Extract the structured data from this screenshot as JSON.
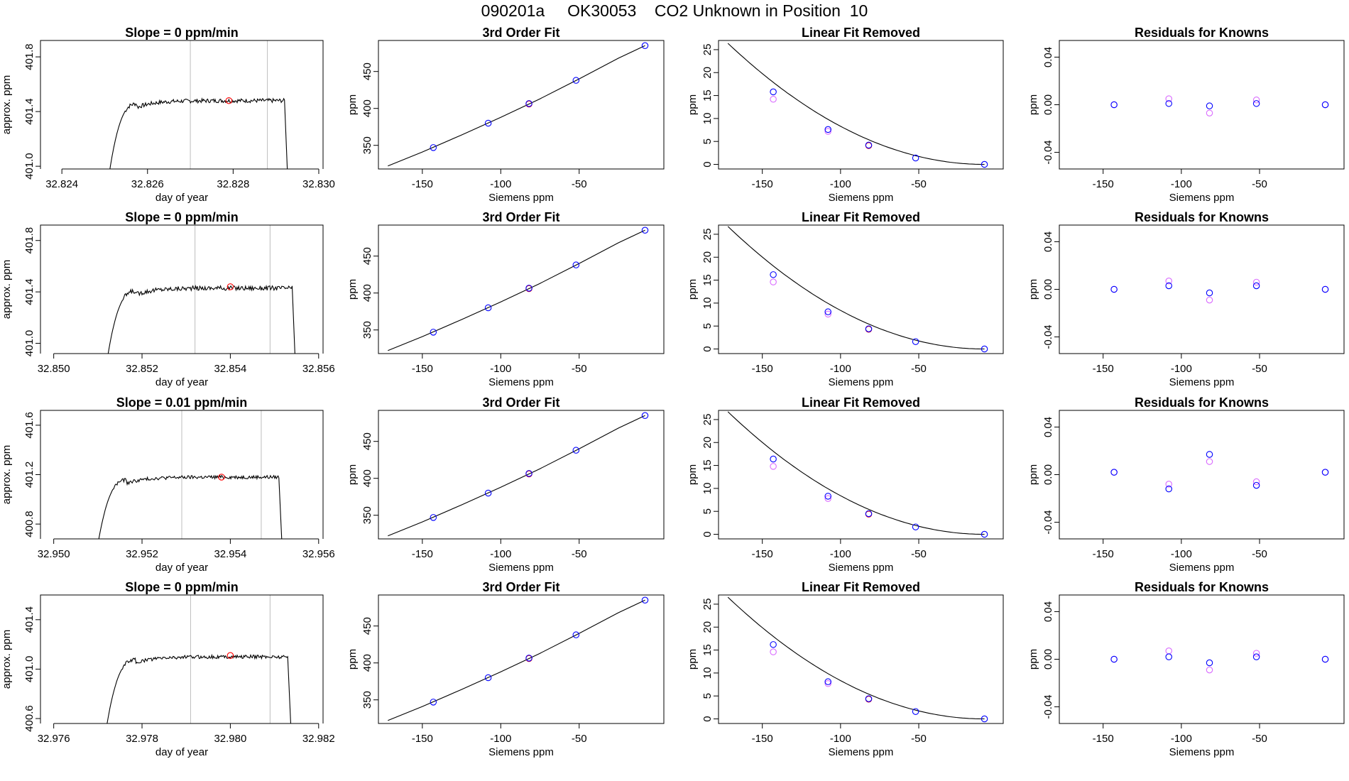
{
  "figure_title": "090201a     OK30053    CO2 Unknown in Position  10",
  "colors": {
    "line": "#000000",
    "vline": "#bdbdbd",
    "unknown_point": "#ff0000",
    "known_point": "#0000ff",
    "magenta_point": "#d96bff"
  },
  "chart_data": [
    {
      "type": "line",
      "row": 1,
      "panel": "trace",
      "title": "Slope =  0  ppm/min",
      "xlabel": "day of year",
      "ylabel": "approx. ppm",
      "xlim": [
        32.8235,
        32.8301
      ],
      "ylim": [
        400.98,
        401.92
      ],
      "xticks": [
        32.824,
        32.826,
        32.828,
        32.83
      ],
      "xtick_labels": [
        "32.824",
        "32.826",
        "32.828",
        "32.830"
      ],
      "yticks": [
        401.0,
        401.4,
        401.8
      ],
      "ytick_labels": [
        "401.0",
        "401.4",
        "401.8"
      ],
      "vlines": [
        32.827,
        32.8288
      ],
      "trace": {
        "start": 32.825,
        "end": 32.8292,
        "base": 400.7,
        "level": 401.48,
        "noise": 0.015,
        "tail_end": 32.8293
      },
      "marker": {
        "x": 32.8279,
        "y": 401.48
      }
    },
    {
      "type": "scatter",
      "row": 1,
      "panel": "fit",
      "title": "3rd Order Fit",
      "xlabel": "Siemens ppm",
      "ylabel": "ppm",
      "xlim": [
        -178,
        4
      ],
      "ylim": [
        318,
        492
      ],
      "xticks": [
        -150,
        -100,
        -50
      ],
      "xtick_labels": [
        "-150",
        "-100",
        "-50"
      ],
      "yticks": [
        350,
        400,
        450
      ],
      "ytick_labels": [
        "350",
        "400",
        "450"
      ],
      "knowns": {
        "x": [
          -143,
          -108,
          -52,
          -8
        ],
        "y": [
          347,
          380,
          438,
          485
        ]
      },
      "unknown": {
        "x": [
          -82
        ],
        "y": [
          406
        ]
      },
      "curve": {
        "x": [
          -172,
          -150,
          -125,
          -100,
          -75,
          -50,
          -25,
          -8
        ],
        "y": [
          322,
          341,
          364,
          388,
          413,
          440,
          468,
          485
        ]
      }
    },
    {
      "type": "scatter",
      "row": 1,
      "panel": "linear_removed",
      "title": "Linear Fit Removed",
      "xlabel": "Siemens ppm",
      "ylabel": "ppm",
      "xlim": [
        -178,
        4
      ],
      "ylim": [
        -1,
        27
      ],
      "xticks": [
        -150,
        -100,
        -50
      ],
      "xtick_labels": [
        "-150",
        "-100",
        "-50"
      ],
      "yticks": [
        0,
        5,
        10,
        15,
        20,
        25
      ],
      "ytick_labels": [
        "0",
        "5",
        "10",
        "15",
        "20",
        "25"
      ],
      "knowns": {
        "x": [
          -143,
          -108,
          -52,
          -8
        ],
        "y": [
          15.8,
          7.6,
          1.4,
          0.0
        ]
      },
      "magenta": {
        "x": [
          -143,
          -108
        ],
        "y": [
          14.2,
          7.2
        ]
      },
      "unknown": {
        "x": [
          -82
        ],
        "y": [
          4.1
        ]
      },
      "curve_coeffs": {
        "x0": -8,
        "a": 0.000981
      }
    },
    {
      "type": "scatter",
      "row": 1,
      "panel": "residuals",
      "title": "Residuals for Knowns",
      "xlabel": "Siemens ppm",
      "ylabel": "",
      "xlim": [
        -178,
        4
      ],
      "ylim": [
        -0.054,
        0.054
      ],
      "xticks": [
        -150,
        -100,
        -50
      ],
      "xtick_labels": [
        "-150",
        "-100",
        "-50"
      ],
      "yticks": [
        -0.04,
        0.0,
        0.04
      ],
      "ytick_labels": [
        "-0.04",
        "0.00",
        "0.04"
      ],
      "blue": {
        "x": [
          -143,
          -108,
          -82,
          -52,
          -8
        ],
        "y": [
          0.0,
          0.001,
          -0.001,
          0.001,
          0.0
        ]
      },
      "magenta": {
        "x": [
          -143,
          -108,
          -82,
          -52,
          -8
        ],
        "y": [
          0.0,
          0.005,
          -0.007,
          0.004,
          0.0
        ]
      }
    },
    {
      "type": "line",
      "row": 2,
      "panel": "trace",
      "title": "Slope =  0  ppm/min",
      "xlabel": "day of year",
      "ylabel": "approx. ppm",
      "xlim": [
        32.8497,
        32.8561
      ],
      "ylim": [
        400.92,
        401.92
      ],
      "xticks": [
        32.85,
        32.852,
        32.854,
        32.856
      ],
      "xtick_labels": [
        "32.850",
        "32.852",
        "32.854",
        "32.856"
      ],
      "yticks": [
        401.0,
        401.4,
        401.8
      ],
      "ytick_labels": [
        "401.0",
        "401.4",
        "401.8"
      ],
      "vlines": [
        32.8532,
        32.8549
      ],
      "trace": {
        "start": 32.8511,
        "end": 32.8554,
        "base": 400.6,
        "level": 401.43,
        "noise": 0.018,
        "tail_end": 32.8555
      },
      "marker": {
        "x": 32.854,
        "y": 401.44
      }
    },
    {
      "type": "scatter",
      "row": 2,
      "panel": "fit",
      "title": "3rd Order Fit",
      "xlabel": "Siemens ppm",
      "ylabel": "ppm",
      "xlim": [
        -178,
        4
      ],
      "ylim": [
        318,
        492
      ],
      "xticks": [
        -150,
        -100,
        -50
      ],
      "xtick_labels": [
        "-150",
        "-100",
        "-50"
      ],
      "yticks": [
        350,
        400,
        450
      ],
      "ytick_labels": [
        "350",
        "400",
        "450"
      ],
      "knowns": {
        "x": [
          -143,
          -108,
          -52,
          -8
        ],
        "y": [
          347,
          380,
          438,
          485
        ]
      },
      "unknown": {
        "x": [
          -82
        ],
        "y": [
          406
        ]
      },
      "curve": {
        "x": [
          -172,
          -150,
          -125,
          -100,
          -75,
          -50,
          -25,
          -8
        ],
        "y": [
          322,
          341,
          364,
          388,
          413,
          440,
          468,
          485
        ]
      }
    },
    {
      "type": "scatter",
      "row": 2,
      "panel": "linear_removed",
      "title": "Linear Fit Removed",
      "xlabel": "Siemens ppm",
      "ylabel": "ppm",
      "xlim": [
        -178,
        4
      ],
      "ylim": [
        -1,
        27
      ],
      "xticks": [
        -150,
        -100,
        -50
      ],
      "xtick_labels": [
        "-150",
        "-100",
        "-50"
      ],
      "yticks": [
        0,
        5,
        10,
        15,
        20,
        25
      ],
      "ytick_labels": [
        "0",
        "5",
        "10",
        "15",
        "20",
        "25"
      ],
      "knowns": {
        "x": [
          -143,
          -108,
          -52,
          -8
        ],
        "y": [
          16.2,
          8.1,
          1.6,
          0.0
        ]
      },
      "magenta": {
        "x": [
          -143,
          -108
        ],
        "y": [
          14.6,
          7.6
        ]
      },
      "unknown": {
        "x": [
          -82
        ],
        "y": [
          4.3
        ]
      },
      "curve_coeffs": {
        "x0": -8,
        "a": 0.000993
      }
    },
    {
      "type": "scatter",
      "row": 2,
      "panel": "residuals",
      "title": "Residuals for Knowns",
      "xlabel": "Siemens ppm",
      "ylabel": "",
      "xlim": [
        -178,
        4
      ],
      "ylim": [
        -0.054,
        0.054
      ],
      "xticks": [
        -150,
        -100,
        -50
      ],
      "xtick_labels": [
        "-150",
        "-100",
        "-50"
      ],
      "yticks": [
        -0.04,
        0.0,
        0.04
      ],
      "ytick_labels": [
        "-0.04",
        "0.00",
        "0.04"
      ],
      "blue": {
        "x": [
          -143,
          -108,
          -82,
          -52,
          -8
        ],
        "y": [
          0.0,
          0.003,
          -0.003,
          0.003,
          0.0
        ]
      },
      "magenta": {
        "x": [
          -143,
          -108,
          -82,
          -52,
          -8
        ],
        "y": [
          0.0,
          0.007,
          -0.009,
          0.006,
          0.0
        ]
      }
    },
    {
      "type": "line",
      "row": 3,
      "panel": "trace",
      "title": "Slope =  0.01  ppm/min",
      "xlabel": "day of year",
      "ylabel": "approx. ppm",
      "xlim": [
        32.9497,
        32.9561
      ],
      "ylim": [
        400.68,
        401.72
      ],
      "xticks": [
        32.95,
        32.952,
        32.954,
        32.956
      ],
      "xtick_labels": [
        "32.950",
        "32.952",
        "32.954",
        "32.956"
      ],
      "yticks": [
        400.8,
        401.2,
        401.6
      ],
      "ytick_labels": [
        "400.8",
        "401.2",
        "401.6"
      ],
      "vlines": [
        32.9529,
        32.9547
      ],
      "trace": {
        "start": 32.9509,
        "end": 32.9551,
        "base": 400.4,
        "level": 401.18,
        "noise": 0.014,
        "tail_end": 32.9552
      },
      "marker": {
        "x": 32.9538,
        "y": 401.18
      }
    },
    {
      "type": "scatter",
      "row": 3,
      "panel": "fit",
      "title": "3rd Order Fit",
      "xlabel": "Siemens ppm",
      "ylabel": "ppm",
      "xlim": [
        -178,
        4
      ],
      "ylim": [
        318,
        492
      ],
      "xticks": [
        -150,
        -100,
        -50
      ],
      "xtick_labels": [
        "-150",
        "-100",
        "-50"
      ],
      "yticks": [
        350,
        400,
        450
      ],
      "ytick_labels": [
        "350",
        "400",
        "450"
      ],
      "knowns": {
        "x": [
          -143,
          -108,
          -52,
          -8
        ],
        "y": [
          347,
          380,
          438,
          485
        ]
      },
      "unknown": {
        "x": [
          -82
        ],
        "y": [
          406
        ]
      },
      "curve": {
        "x": [
          -172,
          -150,
          -125,
          -100,
          -75,
          -50,
          -25,
          -8
        ],
        "y": [
          322,
          341,
          364,
          388,
          413,
          440,
          468,
          485
        ]
      }
    },
    {
      "type": "scatter",
      "row": 3,
      "panel": "linear_removed",
      "title": "Linear Fit Removed",
      "xlabel": "Siemens ppm",
      "ylabel": "ppm",
      "xlim": [
        -178,
        4
      ],
      "ylim": [
        -1,
        27
      ],
      "xticks": [
        -150,
        -100,
        -50
      ],
      "xtick_labels": [
        "-150",
        "-100",
        "-50"
      ],
      "yticks": [
        0,
        5,
        10,
        15,
        20,
        25
      ],
      "ytick_labels": [
        "0",
        "5",
        "10",
        "15",
        "20",
        "25"
      ],
      "knowns": {
        "x": [
          -143,
          -108,
          -52,
          -8
        ],
        "y": [
          16.4,
          8.3,
          1.6,
          0.0
        ]
      },
      "magenta": {
        "x": [
          -143,
          -108
        ],
        "y": [
          14.8,
          7.8
        ]
      },
      "unknown": {
        "x": [
          -82
        ],
        "y": [
          4.4
        ]
      },
      "curve_coeffs": {
        "x0": -8,
        "a": 0.000993
      }
    },
    {
      "type": "scatter",
      "row": 3,
      "panel": "residuals",
      "title": "Residuals for Knowns",
      "xlabel": "Siemens ppm",
      "ylabel": "",
      "xlim": [
        -178,
        4
      ],
      "ylim": [
        -0.054,
        0.054
      ],
      "xticks": [
        -150,
        -100,
        -50
      ],
      "xtick_labels": [
        "-150",
        "-100",
        "-50"
      ],
      "blue": {
        "x": [
          -143,
          -108,
          -82,
          -52,
          -8
        ],
        "y": [
          0.002,
          -0.012,
          0.017,
          -0.009,
          0.002
        ]
      },
      "magenta": {
        "x": [
          -143,
          -108,
          -82,
          -52,
          -8
        ],
        "y": [
          0.002,
          -0.008,
          0.011,
          -0.006,
          0.002
        ]
      },
      "yticks": [
        -0.04,
        0.0,
        0.04
      ],
      "ytick_labels": [
        "-0.04",
        "0.00",
        "0.04"
      ]
    },
    {
      "type": "line",
      "row": 4,
      "panel": "trace",
      "title": "Slope =  0  ppm/min",
      "xlabel": "day of year",
      "ylabel": "approx. ppm",
      "xlim": [
        32.9757,
        32.9821
      ],
      "ylim": [
        400.56,
        401.6
      ],
      "xticks": [
        32.976,
        32.978,
        32.98,
        32.982
      ],
      "xtick_labels": [
        "32.976",
        "32.978",
        "32.980",
        "32.982"
      ],
      "yticks": [
        400.6,
        401.0,
        401.4
      ],
      "ytick_labels": [
        "400.6",
        "401.0",
        "401.4"
      ],
      "vlines": [
        32.9791,
        32.9809
      ],
      "trace": {
        "start": 32.9771,
        "end": 32.9813,
        "base": 400.3,
        "level": 401.1,
        "noise": 0.014,
        "tail_end": 32.9814
      },
      "marker": {
        "x": 32.98,
        "y": 401.11
      }
    },
    {
      "type": "scatter",
      "row": 4,
      "panel": "fit",
      "title": "3rd Order Fit",
      "xlabel": "Siemens ppm",
      "ylabel": "ppm",
      "xlim": [
        -178,
        4
      ],
      "ylim": [
        318,
        492
      ],
      "xticks": [
        -150,
        -100,
        -50
      ],
      "xtick_labels": [
        "-150",
        "-100",
        "-50"
      ],
      "yticks": [
        350,
        400,
        450
      ],
      "ytick_labels": [
        "350",
        "400",
        "450"
      ],
      "knowns": {
        "x": [
          -143,
          -108,
          -52,
          -8
        ],
        "y": [
          347,
          380,
          438,
          485
        ]
      },
      "unknown": {
        "x": [
          -82
        ],
        "y": [
          406
        ]
      },
      "curve": {
        "x": [
          -172,
          -150,
          -125,
          -100,
          -75,
          -50,
          -25,
          -8
        ],
        "y": [
          322,
          341,
          364,
          388,
          413,
          440,
          468,
          485
        ]
      }
    },
    {
      "type": "scatter",
      "row": 4,
      "panel": "linear_removed",
      "title": "Linear Fit Removed",
      "xlabel": "Siemens ppm",
      "ylabel": "ppm",
      "xlim": [
        -178,
        4
      ],
      "ylim": [
        -1,
        27
      ],
      "xticks": [
        -150,
        -100,
        -50
      ],
      "xtick_labels": [
        "-150",
        "-100",
        "-50"
      ],
      "yticks": [
        0,
        5,
        10,
        15,
        20,
        25
      ],
      "ytick_labels": [
        "0",
        "5",
        "10",
        "15",
        "20",
        "25"
      ],
      "knowns": {
        "x": [
          -143,
          -108,
          -52,
          -8
        ],
        "y": [
          16.2,
          8.1,
          1.6,
          0.0
        ]
      },
      "magenta": {
        "x": [
          -143,
          -108
        ],
        "y": [
          14.6,
          7.7
        ]
      },
      "unknown": {
        "x": [
          -82
        ],
        "y": [
          4.3
        ]
      },
      "curve_coeffs": {
        "x0": -8,
        "a": 0.000986
      }
    },
    {
      "type": "scatter",
      "row": 4,
      "panel": "residuals",
      "title": "Residuals for Knowns",
      "xlabel": "Siemens ppm",
      "ylabel": "",
      "xlim": [
        -178,
        4
      ],
      "ylim": [
        -0.054,
        0.054
      ],
      "xticks": [
        -150,
        -100,
        -50
      ],
      "xtick_labels": [
        "-150",
        "-100",
        "-50"
      ],
      "yticks": [
        -0.04,
        0.0,
        0.04
      ],
      "ytick_labels": [
        "-0.04",
        "0.00",
        "0.04"
      ],
      "blue": {
        "x": [
          -143,
          -108,
          -82,
          -52,
          -8
        ],
        "y": [
          0.0,
          0.002,
          -0.003,
          0.002,
          0.0
        ]
      },
      "magenta": {
        "x": [
          -143,
          -108,
          -82,
          -52,
          -8
        ],
        "y": [
          0.0,
          0.007,
          -0.009,
          0.005,
          0.0
        ]
      }
    }
  ]
}
